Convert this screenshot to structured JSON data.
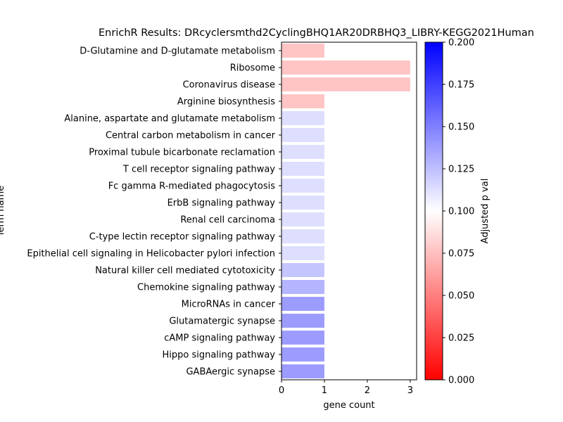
{
  "chart_data": {
    "type": "bar",
    "orientation": "horizontal",
    "title": "EnrichR Results: DRcyclersmthd2CyclingBHQ1AR20DRBHQ3_LIBRY-KEGG2021Human",
    "xlabel": "gene count",
    "ylabel": "Term name",
    "xlim": [
      0,
      3.15
    ],
    "x_ticks": [
      "0",
      "1",
      "2",
      "3"
    ],
    "categories": [
      "D-Glutamine and D-glutamate metabolism",
      "Ribosome",
      "Coronavirus disease",
      "Arginine biosynthesis",
      "Alanine, aspartate and glutamate metabolism",
      "Central carbon metabolism in cancer",
      "Proximal tubule bicarbonate reclamation",
      "T cell receptor signaling pathway",
      "Fc gamma R-mediated phagocytosis",
      "ErbB signaling pathway",
      "Renal cell carcinoma",
      "C-type lectin receptor signaling pathway",
      "Epithelial cell signaling in Helicobacter pylori infection",
      "Natural killer cell mediated cytotoxicity",
      "Chemokine signaling pathway",
      "MicroRNAs in cancer",
      "Glutamatergic synapse",
      "cAMP signaling pathway",
      "Hippo signaling pathway",
      "GABAergic synapse"
    ],
    "values": [
      1,
      3,
      3,
      1,
      1,
      1,
      1,
      1,
      1,
      1,
      1,
      1,
      1,
      1,
      1,
      1,
      1,
      1,
      1,
      1
    ],
    "adjusted_p": [
      0.065,
      0.065,
      0.065,
      0.065,
      0.12,
      0.12,
      0.12,
      0.12,
      0.12,
      0.12,
      0.12,
      0.12,
      0.12,
      0.135,
      0.145,
      0.16,
      0.16,
      0.16,
      0.16,
      0.16
    ],
    "colorbar": {
      "label": "Adjusted p val",
      "range": [
        0,
        0.2
      ],
      "ticks": [
        "0.000",
        "0.025",
        "0.050",
        "0.075",
        "0.100",
        "0.125",
        "0.150",
        "0.175",
        "0.200"
      ],
      "colormap": [
        "#ff0000",
        "#ffffff",
        "#0000ff"
      ]
    }
  }
}
